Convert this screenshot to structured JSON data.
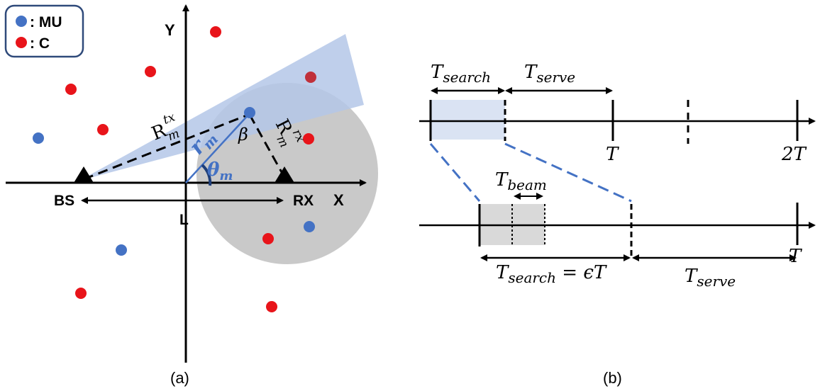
{
  "legend": {
    "mu_label": ": MU",
    "c_label": ": C",
    "mu_color": "#4472c4",
    "c_color": "#e8141a"
  },
  "panel_a": {
    "caption": "(a)",
    "axis_x": "X",
    "axis_y": "Y",
    "bs_label": "BS",
    "rx_label": "RX",
    "l_label": "L",
    "r_tx_main": "R",
    "r_tx_sub": "m",
    "r_tx_sup": "tx",
    "r_rx_main": "R",
    "r_rx_sub": "m",
    "r_rx_sup": "rx",
    "r_m_main": "r",
    "r_m_sub": "m",
    "theta_main": "θ",
    "theta_sub": "m",
    "beta": "β",
    "beam_color": "#b4c7e7",
    "receiver_zone_color": "#bfbfbf"
  },
  "panel_b": {
    "caption": "(b)",
    "t_search_main": "T",
    "t_search_sub": "search",
    "t_serve_main": "T",
    "t_serve_sub": "serve",
    "t_label": "T",
    "two_t_label": "2T",
    "t_beam_main": "T",
    "t_beam_sub": "beam",
    "eq_main": "T",
    "eq_sub": "search",
    "eq_rhs": " = ϵT",
    "t_serve2_main": "T",
    "t_serve2_sub": "serve",
    "t_end_label": "T",
    "search_fill": "#dae3f3",
    "beam_fill": "#d9d9d9",
    "zoom_line_color": "#4472c4"
  }
}
